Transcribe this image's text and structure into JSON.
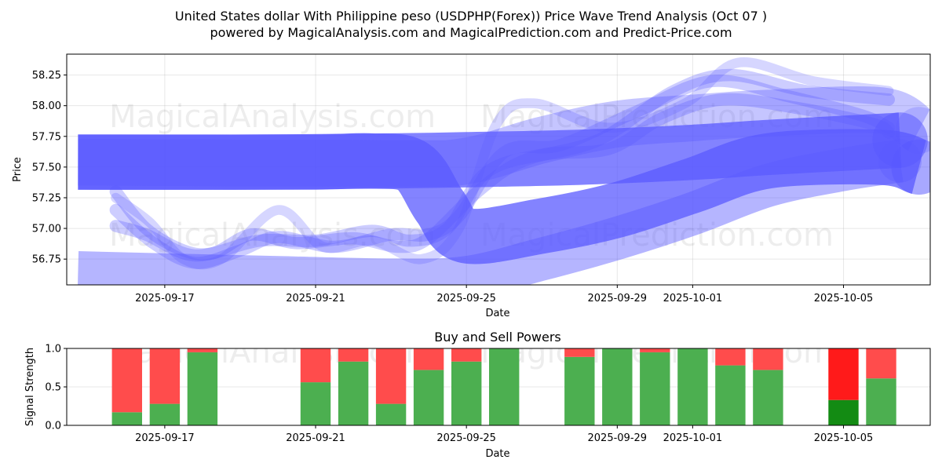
{
  "figure": {
    "title_line1": "United States dollar With Philippine peso (USDPHP(Forex)) Price Wave Trend Analysis (Oct 07 )",
    "title_line2": "powered by MagicalAnalysis.com and MagicalPrediction.com and Predict-Price.com",
    "watermarks": [
      "MagicalAnalysis.com",
      "MagicalPrediction.com"
    ]
  },
  "chart_data": [
    {
      "type": "area",
      "title": "United States dollar With Philippine peso (USDPHP(Forex)) Price Wave Trend Analysis (Oct 07 )",
      "xlabel": "Date",
      "ylabel": "Price",
      "ylim": [
        56.54,
        58.42
      ],
      "xlim": [
        -2.6,
        20.3
      ],
      "x_origin_date": "2025-09-17",
      "yticks": [
        "56.75",
        "57.00",
        "57.25",
        "57.50",
        "57.75",
        "58.00",
        "58.25"
      ],
      "xticks": [
        {
          "day": 0,
          "label": "2025-09-17"
        },
        {
          "day": 4,
          "label": "2025-09-21"
        },
        {
          "day": 8,
          "label": "2025-09-25"
        },
        {
          "day": 12,
          "label": "2025-09-29"
        },
        {
          "day": 14,
          "label": "2025-10-01"
        },
        {
          "day": 18,
          "label": "2025-10-05"
        }
      ],
      "grid": true,
      "series": [
        {
          "name": "wave-upper-flat",
          "color": "#5a5aff",
          "opacity": 0.75,
          "width": 0.45,
          "points": [
            [
              -2.3,
              57.54
            ],
            [
              2,
              57.54
            ],
            [
              6,
              57.55
            ],
            [
              8,
              57.56
            ],
            [
              11,
              57.58
            ],
            [
              14,
              57.62
            ],
            [
              16,
              57.66
            ],
            [
              19,
              57.71
            ],
            [
              19.5,
              57.72
            ]
          ]
        },
        {
          "name": "wave-upper-main",
          "color": "#5a5aff",
          "opacity": 0.75,
          "width": 0.45,
          "points": [
            [
              -2.3,
              57.54
            ],
            [
              1,
              57.54
            ],
            [
              4,
              57.54
            ],
            [
              5.5,
              57.55
            ],
            [
              6.6,
              57.5
            ],
            [
              7.3,
              57.18
            ],
            [
              8,
              56.94
            ],
            [
              10,
              57.02
            ],
            [
              12,
              57.15
            ],
            [
              14,
              57.35
            ],
            [
              16,
              57.55
            ],
            [
              19,
              57.58
            ],
            [
              20,
              57.5
            ]
          ]
        },
        {
          "name": "wave-mid-band",
          "color": "#5a5aff",
          "opacity": 0.35,
          "width": 0.38,
          "points": [
            [
              -2.3,
              57.54
            ],
            [
              6,
              57.53
            ],
            [
              8,
              57.55
            ],
            [
              10,
              57.72
            ],
            [
              12,
              57.85
            ],
            [
              14,
              57.9
            ],
            [
              16,
              57.94
            ],
            [
              19,
              57.96
            ],
            [
              20,
              57.8
            ]
          ]
        },
        {
          "name": "wave-lower-wide",
          "color": "#5a5aff",
          "opacity": 0.45,
          "width": 0.35,
          "points": [
            [
              -2.3,
              56.64
            ],
            [
              3,
              56.6
            ],
            [
              6,
              56.58
            ],
            [
              8,
              56.6
            ],
            [
              10,
              56.75
            ],
            [
              12,
              56.92
            ],
            [
              14,
              57.12
            ],
            [
              16,
              57.35
            ],
            [
              18,
              57.48
            ],
            [
              19.5,
              57.55
            ]
          ]
        },
        {
          "name": "wave-wiggle-1",
          "color": "#5a5aff",
          "opacity": 0.3,
          "width": 0.1,
          "points": [
            [
              -1.3,
              57.3
            ],
            [
              -0.5,
              57.0
            ],
            [
              0.5,
              56.82
            ],
            [
              1.3,
              56.8
            ],
            [
              2.3,
              56.95
            ],
            [
              3.5,
              56.88
            ],
            [
              5.0,
              56.92
            ],
            [
              6.2,
              56.85
            ],
            [
              7.0,
              56.92
            ],
            [
              8.3,
              57.3
            ],
            [
              9.5,
              57.55
            ],
            [
              11.5,
              57.72
            ],
            [
              13.5,
              58.12
            ],
            [
              15.0,
              58.25
            ],
            [
              17.0,
              58.12
            ],
            [
              19.2,
              58.05
            ]
          ]
        },
        {
          "name": "wave-wiggle-2",
          "color": "#5a5aff",
          "opacity": 0.3,
          "width": 0.1,
          "points": [
            [
              -1.3,
              57.15
            ],
            [
              -0.3,
              56.88
            ],
            [
              0.8,
              56.72
            ],
            [
              2.0,
              56.82
            ],
            [
              3.0,
              56.93
            ],
            [
              4.5,
              56.85
            ],
            [
              6.0,
              56.95
            ],
            [
              7.0,
              56.95
            ],
            [
              7.8,
              57.1
            ],
            [
              9.0,
              57.62
            ],
            [
              10.5,
              57.68
            ],
            [
              12.5,
              57.95
            ],
            [
              14.5,
              58.2
            ],
            [
              16.5,
              58.08
            ],
            [
              18.5,
              57.92
            ],
            [
              19.2,
              57.82
            ]
          ]
        },
        {
          "name": "wave-wiggle-3",
          "color": "#5a5aff",
          "opacity": 0.3,
          "width": 0.1,
          "points": [
            [
              -1.3,
              57.02
            ],
            [
              -0.5,
              56.95
            ],
            [
              0.8,
              56.78
            ],
            [
              2.5,
              56.9
            ],
            [
              4.0,
              56.9
            ],
            [
              5.5,
              56.98
            ],
            [
              6.5,
              56.9
            ],
            [
              7.5,
              57.0
            ],
            [
              8.5,
              57.45
            ],
            [
              10.0,
              57.6
            ],
            [
              11.8,
              57.65
            ],
            [
              13.2,
              57.9
            ],
            [
              14.8,
              58.05
            ],
            [
              16.8,
              57.98
            ],
            [
              18.8,
              57.85
            ],
            [
              19.2,
              57.78
            ]
          ]
        },
        {
          "name": "wave-wiggle-4",
          "color": "#5a5aff",
          "opacity": 0.25,
          "width": 0.08,
          "points": [
            [
              -1.3,
              57.25
            ],
            [
              -0.4,
              57.05
            ],
            [
              0.5,
              56.75
            ],
            [
              1.5,
              56.75
            ],
            [
              3.0,
              57.15
            ],
            [
              4.2,
              56.85
            ],
            [
              5.5,
              56.9
            ],
            [
              6.8,
              56.75
            ],
            [
              7.8,
              57.0
            ],
            [
              8.8,
              57.85
            ],
            [
              9.8,
              58.02
            ],
            [
              11.8,
              57.82
            ],
            [
              13.8,
              58.02
            ],
            [
              15.2,
              58.35
            ],
            [
              17.2,
              58.2
            ],
            [
              19.2,
              58.12
            ]
          ]
        }
      ]
    },
    {
      "type": "bar",
      "title": "Buy and Sell Powers",
      "xlabel": "Date",
      "ylabel": "Signal Strength",
      "ylim": [
        0,
        1.0
      ],
      "xlim": [
        -2.6,
        20.3
      ],
      "yticks": [
        "0.0",
        "0.5",
        "1.0"
      ],
      "xticks": [
        {
          "day": 0,
          "label": "2025-09-17"
        },
        {
          "day": 4,
          "label": "2025-09-21"
        },
        {
          "day": 8,
          "label": "2025-09-25"
        },
        {
          "day": 12,
          "label": "2025-09-29"
        },
        {
          "day": 14,
          "label": "2025-10-01"
        },
        {
          "day": 18,
          "label": "2025-10-05"
        }
      ],
      "grid": true,
      "bar_width_days": 0.8,
      "series": [
        {
          "name": "Buy",
          "color": "#4caf50"
        },
        {
          "name": "Sell",
          "color": "#ff4c4c"
        }
      ],
      "bars": [
        {
          "day": -1,
          "buy": 0.17,
          "sell": 0.83
        },
        {
          "day": 0,
          "buy": 0.28,
          "sell": 0.72
        },
        {
          "day": 1,
          "buy": 0.95,
          "sell": 0.05
        },
        {
          "day": 4,
          "buy": 0.56,
          "sell": 0.44
        },
        {
          "day": 5,
          "buy": 0.83,
          "sell": 0.17
        },
        {
          "day": 6,
          "buy": 0.28,
          "sell": 0.72
        },
        {
          "day": 7,
          "buy": 0.72,
          "sell": 0.28
        },
        {
          "day": 8,
          "buy": 0.83,
          "sell": 0.17
        },
        {
          "day": 9,
          "buy": 1.0,
          "sell": 0.0
        },
        {
          "day": 11,
          "buy": 0.89,
          "sell": 0.11
        },
        {
          "day": 12,
          "buy": 1.0,
          "sell": 0.0
        },
        {
          "day": 13,
          "buy": 0.95,
          "sell": 0.05
        },
        {
          "day": 14,
          "buy": 1.0,
          "sell": 0.0
        },
        {
          "day": 15,
          "buy": 0.78,
          "sell": 0.22
        },
        {
          "day": 16,
          "buy": 0.72,
          "sell": 0.28
        },
        {
          "day": 18,
          "buy": 0.33,
          "sell": 0.67,
          "buy_color": "#138b13",
          "sell_color": "#ff1a1a"
        },
        {
          "day": 19,
          "buy": 0.61,
          "sell": 0.39
        }
      ]
    }
  ]
}
